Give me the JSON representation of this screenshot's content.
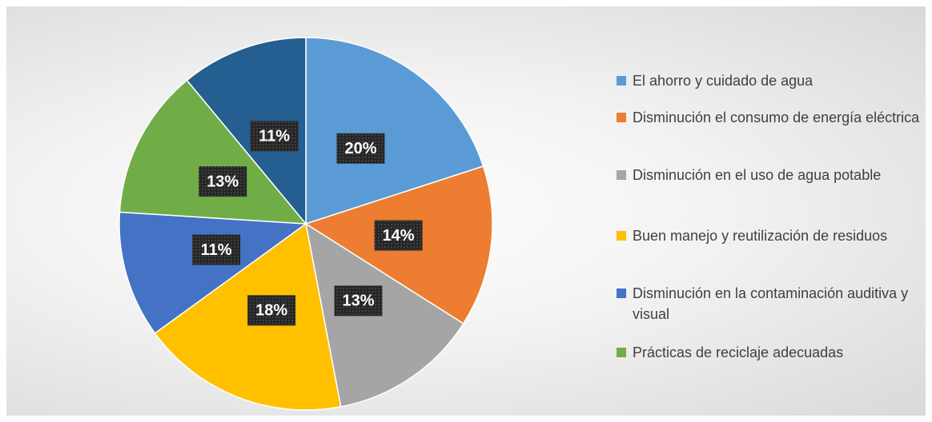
{
  "chart_data": {
    "type": "pie",
    "categories": [
      "El ahorro y cuidado de agua",
      "Disminución el consumo de energía eléctrica",
      "Disminución en el uso de agua potable",
      "Buen manejo y reutilización de residuos",
      "Disminución en la contaminación auditiva y visual",
      "Prácticas de reciclaje adecuadas",
      null
    ],
    "values": [
      20,
      14,
      13,
      18,
      11,
      13,
      11
    ],
    "value_labels": [
      "20%",
      "14%",
      "13%",
      "18%",
      "11%",
      "13%",
      "11%"
    ],
    "colors": [
      "#5b9bd5",
      "#ed7d31",
      "#a5a5a5",
      "#ffc000",
      "#4472c4",
      "#70ad47",
      "#255e91"
    ],
    "legend": "right"
  }
}
